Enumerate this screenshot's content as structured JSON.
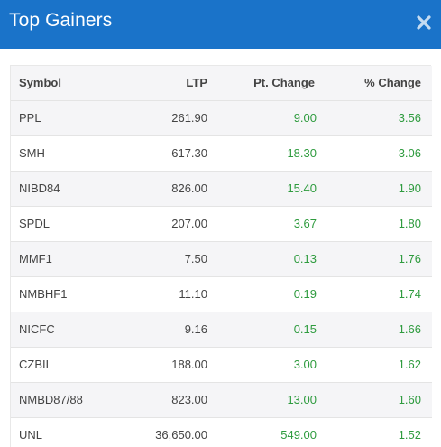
{
  "modal": {
    "title": "Top Gainers",
    "close_icon": "close-icon",
    "header_color": "#1a73c9",
    "positive_color": "#2e9b3e"
  },
  "table": {
    "headers": {
      "symbol": "Symbol",
      "ltp": "LTP",
      "pt_change": "Pt. Change",
      "pct_change": "% Change"
    },
    "rows": [
      {
        "symbol": "PPL",
        "ltp": "261.90",
        "pt_change": "9.00",
        "pct_change": "3.56"
      },
      {
        "symbol": "SMH",
        "ltp": "617.30",
        "pt_change": "18.30",
        "pct_change": "3.06"
      },
      {
        "symbol": "NIBD84",
        "ltp": "826.00",
        "pt_change": "15.40",
        "pct_change": "1.90"
      },
      {
        "symbol": "SPDL",
        "ltp": "207.00",
        "pt_change": "3.67",
        "pct_change": "1.80"
      },
      {
        "symbol": "MMF1",
        "ltp": "7.50",
        "pt_change": "0.13",
        "pct_change": "1.76"
      },
      {
        "symbol": "NMBHF1",
        "ltp": "11.10",
        "pt_change": "0.19",
        "pct_change": "1.74"
      },
      {
        "symbol": "NICFC",
        "ltp": "9.16",
        "pt_change": "0.15",
        "pct_change": "1.66"
      },
      {
        "symbol": "CZBIL",
        "ltp": "188.00",
        "pt_change": "3.00",
        "pct_change": "1.62"
      },
      {
        "symbol": "NMBD87/88",
        "ltp": "823.00",
        "pt_change": "13.00",
        "pct_change": "1.60"
      },
      {
        "symbol": "UNL",
        "ltp": "36,650.00",
        "pt_change": "549.00",
        "pct_change": "1.52"
      }
    ]
  }
}
